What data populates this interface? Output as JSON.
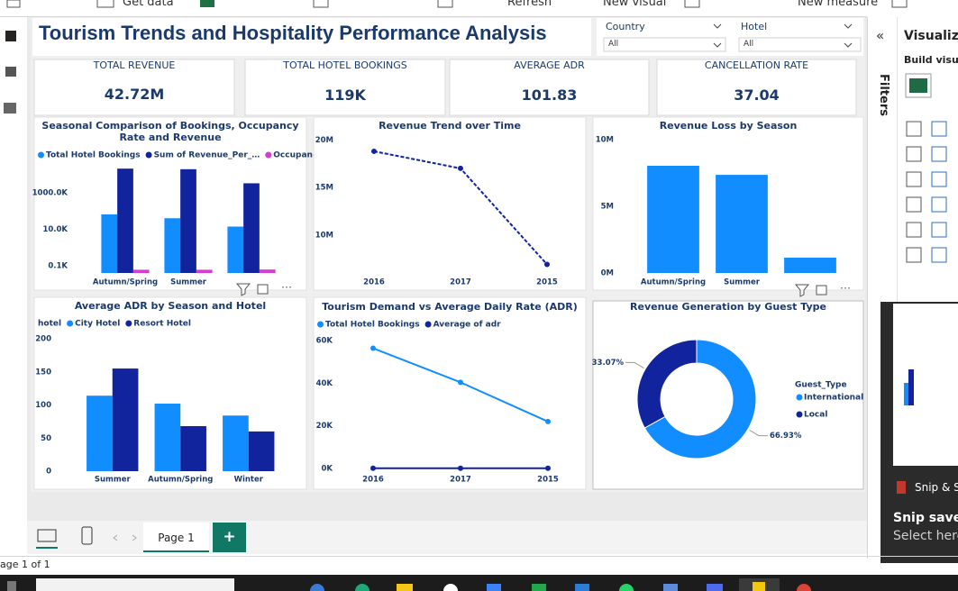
{
  "toolbar": {
    "items": [
      "Get data",
      "Refresh",
      "New visual",
      "New measure"
    ]
  },
  "title": "Tourism Trends and Hospitality Performance Analysis",
  "slicers": [
    {
      "label": "Country",
      "value": "All"
    },
    {
      "label": "Hotel",
      "value": "All"
    }
  ],
  "cards": [
    {
      "label": "TOTAL REVENUE",
      "value": "42.72M"
    },
    {
      "label": "TOTAL HOTEL BOOKINGS",
      "value": "119K"
    },
    {
      "label": "AVERAGE ADR",
      "value": "101.83"
    },
    {
      "label": "CANCELLATION RATE",
      "value": "37.04"
    }
  ],
  "chart_data": [
    {
      "type": "bar",
      "title": "Seasonal Comparison of Bookings, Occupancy Rate and Revenue",
      "categories": [
        "Autumn/Spring",
        "Summer",
        null
      ],
      "series": [
        {
          "name": "Total Hotel Bookings",
          "color": "#118DFF",
          "values": [
            65000,
            40000,
            14000
          ]
        },
        {
          "name": "Sum of Revenue_Per_…",
          "color": "#12239E",
          "values": [
            21000000,
            19500000,
            3300000
          ]
        },
        {
          "name": "Occupancy Rate",
          "color": "#D83BD2",
          "values": [
            60,
            60,
            62
          ]
        }
      ],
      "log_scale": true,
      "ylim": [
        40,
        40000000
      ],
      "yticks": [
        {
          "value": 100,
          "label": "0.1K"
        },
        {
          "value": 10000,
          "label": "10.0K"
        },
        {
          "value": 1000000,
          "label": "1000.0K"
        }
      ]
    },
    {
      "type": "line",
      "title": "Revenue Trend over Time",
      "categories": [
        "2016",
        "2017",
        "2015"
      ],
      "values": [
        18800000,
        17000000,
        6900000
      ],
      "color": "#12239E",
      "line_style": "dashed",
      "ylim": [
        6000000,
        20500000
      ],
      "yticks": [
        {
          "value": 10000000,
          "label": "10M"
        },
        {
          "value": 15000000,
          "label": "15M"
        },
        {
          "value": 20000000,
          "label": "20M"
        }
      ]
    },
    {
      "type": "bar",
      "title": "Revenue Loss by Season",
      "categories": [
        "Autumn/Spring",
        "Summer",
        null
      ],
      "values": [
        8040000,
        7360000,
        1150000
      ],
      "color": "#118DFF",
      "ylim": [
        0,
        10000000
      ],
      "yticks": [
        {
          "value": 0,
          "label": "0M"
        },
        {
          "value": 5000000,
          "label": "5M"
        },
        {
          "value": 10000000,
          "label": "10M"
        }
      ]
    },
    {
      "type": "bar",
      "title": "Average ADR by Season and Hotel",
      "legend_title": "hotel",
      "categories": [
        "Summer",
        "Autumn/Spring",
        "Winter"
      ],
      "series": [
        {
          "name": "City Hotel",
          "color": "#118DFF",
          "values": [
            114,
            102,
            84
          ]
        },
        {
          "name": "Resort Hotel",
          "color": "#12239E",
          "values": [
            155,
            68,
            60
          ]
        }
      ],
      "ylim": [
        0,
        200
      ],
      "yticks": [
        0,
        50,
        100,
        150,
        200
      ]
    },
    {
      "type": "line",
      "title": "Tourism Demand vs Average Daily Rate (ADR)",
      "categories": [
        "2016",
        "2017",
        "2015"
      ],
      "series": [
        {
          "name": "Total Hotel Bookings",
          "color": "#118DFF",
          "values": [
            56400,
            40400,
            22000
          ]
        },
        {
          "name": "Average of adr",
          "color": "#12239E",
          "values": [
            105,
            100,
            95
          ]
        }
      ],
      "line_style": "solid",
      "ylim": [
        0,
        60000
      ],
      "yticks": [
        {
          "value": 0,
          "label": "0K"
        },
        {
          "value": 20000,
          "label": "20K"
        },
        {
          "value": 40000,
          "label": "40K"
        },
        {
          "value": 60000,
          "label": "60K"
        }
      ]
    },
    {
      "type": "pie",
      "title": "Revenue Generation by Guest Type",
      "legend_title": "Guest_Type",
      "hole": true,
      "categories": [
        "International",
        "Local"
      ],
      "values": [
        66.93,
        33.07
      ],
      "value_labels": [
        "66.93%",
        "33.07%"
      ],
      "colors": [
        "#118DFF",
        "#12239E"
      ]
    }
  ],
  "right_panel": {
    "title": "Visualiza",
    "subtitle": "Build visual",
    "filters": "Filters"
  },
  "pages": {
    "tab": "Page 1",
    "add": "+",
    "status": "age 1 of 1"
  },
  "notification": {
    "app": "Snip & Sk",
    "title": "Snip saved",
    "text": "Select here"
  }
}
